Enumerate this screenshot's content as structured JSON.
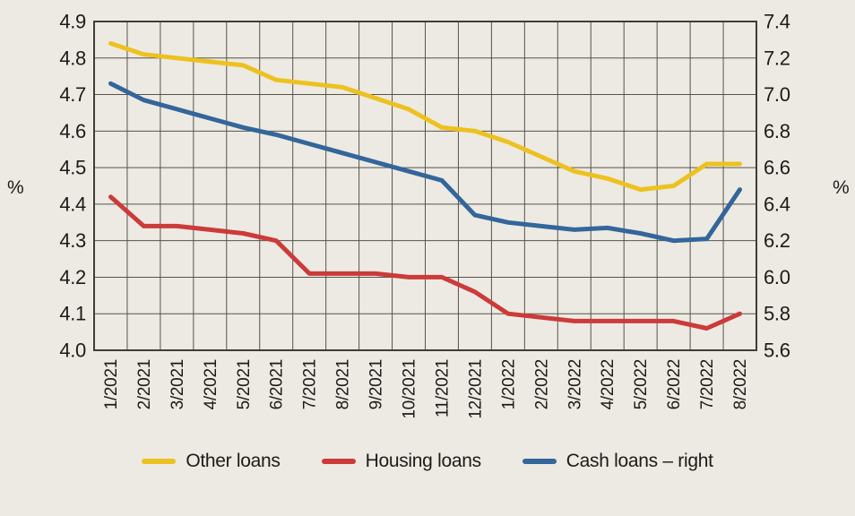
{
  "figure": {
    "background_color": "#edeae3",
    "text_color": "#1c1b19",
    "grid_color": "#565349",
    "border_color": "#403d37"
  },
  "axis_left": {
    "unit_label": "%",
    "min": 4.0,
    "max": 4.9,
    "tick_step": 0.1,
    "tick_labels": [
      "4.0",
      "4.1",
      "4.2",
      "4.3",
      "4.4",
      "4.5",
      "4.6",
      "4.7",
      "4.8",
      "4.9"
    ]
  },
  "axis_right": {
    "unit_label": "%",
    "min": 5.6,
    "max": 7.4,
    "tick_step": 0.2,
    "tick_labels": [
      "5.6",
      "5.8",
      "6.0",
      "6.2",
      "6.4",
      "6.6",
      "6.8",
      "7.0",
      "7.2",
      "7.4"
    ]
  },
  "chart_data": {
    "type": "line",
    "title": "",
    "xlabel": "",
    "ylabel_left": "%",
    "ylabel_right": "%",
    "grid": true,
    "legend_position": "bottom",
    "left_ylim": [
      4.0,
      4.9
    ],
    "right_ylim": [
      5.6,
      7.4
    ],
    "categories": [
      "1/2021",
      "2/2021",
      "3/2021",
      "4/2021",
      "5/2021",
      "6/2021",
      "7/2021",
      "8/2021",
      "9/2021",
      "10/2021",
      "11/2021",
      "12/2021",
      "1/2022",
      "2/2022",
      "3/2022",
      "4/2022",
      "5/2022",
      "6/2022",
      "7/2022",
      "8/2022"
    ],
    "series": [
      {
        "name": "Other loans",
        "axis": "left",
        "color": "#edc11f",
        "values": [
          4.84,
          4.81,
          4.8,
          4.79,
          4.78,
          4.74,
          4.73,
          4.72,
          4.69,
          4.66,
          4.61,
          4.6,
          4.57,
          4.53,
          4.49,
          4.47,
          4.44,
          4.45,
          4.51,
          4.51
        ]
      },
      {
        "name": "Housing loans",
        "axis": "left",
        "color": "#cc3a3a",
        "values": [
          4.42,
          4.34,
          4.34,
          4.33,
          4.32,
          4.3,
          4.21,
          4.21,
          4.21,
          4.2,
          4.2,
          4.16,
          4.1,
          4.09,
          4.08,
          4.08,
          4.08,
          4.08,
          4.06,
          4.1
        ]
      },
      {
        "name": "Cash loans – right",
        "axis": "right",
        "color": "#33669a",
        "values": [
          7.06,
          6.97,
          6.92,
          6.87,
          6.82,
          6.78,
          6.73,
          6.68,
          6.63,
          6.58,
          6.53,
          6.34,
          6.3,
          6.28,
          6.26,
          6.27,
          6.24,
          6.2,
          6.21,
          6.48
        ]
      }
    ]
  }
}
